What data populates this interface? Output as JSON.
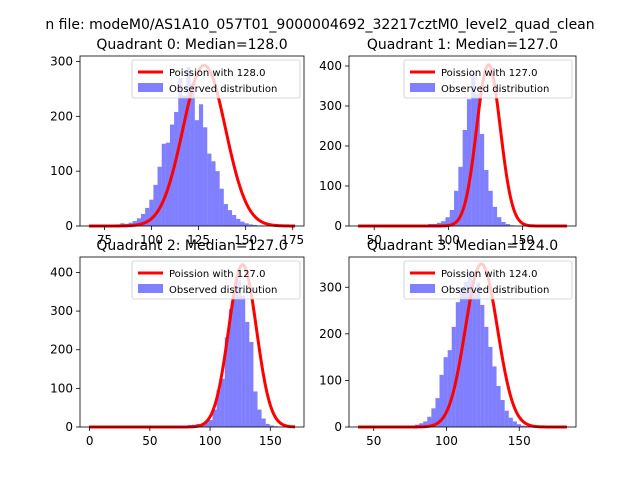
{
  "figure": {
    "suptitle": "n file: modeM0/AS1A10_057T01_9000004692_32217cztM0_level2_quad_clean"
  },
  "chart_data": [
    {
      "type": "bar",
      "title": "Quadrant 0: Median=128.0",
      "xlim": [
        62,
        181
      ],
      "ylim": [
        0,
        310
      ],
      "xticks": [
        75,
        100,
        125,
        150,
        175
      ],
      "yticks": [
        0,
        100,
        200,
        300
      ],
      "legend": {
        "placement": "top-right",
        "line_label": "Poission with 128.0",
        "hist_label": "Observed distribution"
      },
      "median": 128.0,
      "sigma": 11.3,
      "peak": 293,
      "hist": {
        "bin_start": 68,
        "bin_width": 2.2,
        "counts": [
          1,
          1,
          0,
          1,
          2,
          2,
          3,
          5,
          4,
          6,
          9,
          14,
          22,
          33,
          48,
          75,
          108,
          150,
          152,
          185,
          208,
          270,
          238,
          290,
          260,
          193,
          222,
          180,
          132,
          118,
          100,
          68,
          40,
          29,
          20,
          13,
          8,
          5,
          3,
          2,
          1,
          1,
          1,
          0,
          0,
          0,
          0,
          0,
          0,
          0
        ]
      }
    },
    {
      "type": "bar",
      "title": "Quadrant 1: Median=127.0",
      "xlim": [
        33,
        186
      ],
      "ylim": [
        0,
        425
      ],
      "xticks": [
        50,
        100,
        150
      ],
      "yticks": [
        0,
        100,
        200,
        300,
        400
      ],
      "legend": {
        "placement": "top-right",
        "line_label": "Poission with 127.0",
        "hist_label": "Observed distribution"
      },
      "median": 127.0,
      "sigma": 8.0,
      "peak": 403,
      "hist": {
        "bin_start": 40,
        "bin_width": 2.9,
        "counts": [
          1,
          0,
          0,
          0,
          0,
          0,
          1,
          0,
          0,
          1,
          0,
          1,
          1,
          2,
          3,
          3,
          5,
          5,
          8,
          12,
          22,
          40,
          88,
          148,
          240,
          317,
          382,
          330,
          230,
          140,
          88,
          48,
          22,
          10,
          5,
          2,
          1,
          1,
          0,
          0,
          0,
          0,
          0,
          0,
          0,
          0,
          0,
          0,
          0,
          0
        ]
      }
    },
    {
      "type": "bar",
      "title": "Quadrant 2: Median=127.0",
      "xlim": [
        -8,
        178
      ],
      "ylim": [
        0,
        440
      ],
      "xticks": [
        0,
        50,
        100,
        150
      ],
      "yticks": [
        0,
        100,
        200,
        300,
        400
      ],
      "legend": {
        "placement": "top-right",
        "line_label": "Poission with 127.0",
        "hist_label": "Observed distribution"
      },
      "median": 127.0,
      "sigma": 11.5,
      "peak": 420,
      "hist": {
        "bin_start": 0,
        "bin_width": 3.4,
        "counts": [
          1,
          0,
          0,
          0,
          0,
          0,
          0,
          0,
          0,
          0,
          0,
          0,
          0,
          0,
          0,
          0,
          1,
          1,
          1,
          1,
          1,
          2,
          2,
          3,
          5,
          6,
          8,
          6,
          12,
          18,
          45,
          95,
          125,
          232,
          305,
          350,
          380,
          340,
          272,
          220,
          92,
          45,
          22,
          8,
          4,
          2,
          1,
          0,
          0,
          0
        ]
      }
    },
    {
      "type": "bar",
      "title": "Quadrant 3: Median=124.0",
      "xlim": [
        33,
        189
      ],
      "ylim": [
        0,
        365
      ],
      "xticks": [
        50,
        100,
        150
      ],
      "yticks": [
        0,
        100,
        200,
        300
      ],
      "legend": {
        "placement": "top-right",
        "line_label": "Poission with 124.0",
        "hist_label": "Observed distribution"
      },
      "median": 124.0,
      "sigma": 11.0,
      "peak": 350,
      "hist": {
        "bin_start": 42,
        "bin_width": 2.8,
        "counts": [
          1,
          0,
          0,
          0,
          1,
          0,
          1,
          1,
          1,
          1,
          2,
          2,
          3,
          5,
          8,
          12,
          22,
          40,
          62,
          112,
          150,
          165,
          215,
          268,
          300,
          312,
          335,
          295,
          310,
          262,
          215,
          172,
          130,
          88,
          58,
          35,
          20,
          12,
          6,
          3,
          2,
          1,
          0,
          0,
          0,
          0,
          0,
          0,
          0,
          0
        ]
      }
    }
  ]
}
